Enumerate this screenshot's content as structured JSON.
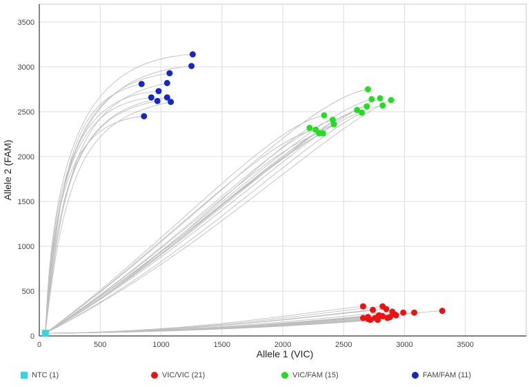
{
  "chart_data": {
    "type": "scatter",
    "xlabel": "Allele 1 (VIC)",
    "ylabel": "Allele 2 (FAM)",
    "xlim": [
      0,
      4000
    ],
    "ylim": [
      0,
      3700
    ],
    "xticks": [
      0,
      500,
      1000,
      1500,
      2000,
      2500,
      3000,
      3500
    ],
    "yticks": [
      0,
      500,
      1000,
      1500,
      2000,
      2500,
      3000,
      3500
    ],
    "grid": true,
    "trace_color": "#b3b3b3",
    "series": [
      {
        "name": "NTC (1)",
        "color": "#33d6e0",
        "marker": "square",
        "points": [
          [
            50,
            30
          ]
        ]
      },
      {
        "name": "VIC/VIC (21)",
        "color": "#ee1111",
        "marker": "circle",
        "points": [
          [
            2660,
            330
          ],
          [
            2740,
            290
          ],
          [
            2820,
            330
          ],
          [
            2850,
            300
          ],
          [
            3310,
            280
          ],
          [
            2660,
            200
          ],
          [
            2700,
            190
          ],
          [
            2720,
            180
          ],
          [
            2780,
            190
          ],
          [
            2790,
            230
          ],
          [
            2820,
            220
          ],
          [
            2880,
            210
          ],
          [
            2900,
            270
          ],
          [
            2920,
            240
          ],
          [
            2990,
            260
          ],
          [
            3080,
            260
          ],
          [
            2700,
            210
          ],
          [
            2760,
            200
          ],
          [
            2860,
            200
          ],
          [
            2930,
            230
          ],
          [
            2780,
            180
          ]
        ]
      },
      {
        "name": "VIC/FAM (15)",
        "color": "#22dd22",
        "marker": "circle",
        "points": [
          [
            2700,
            2750
          ],
          [
            2730,
            2640
          ],
          [
            2800,
            2650
          ],
          [
            2890,
            2630
          ],
          [
            2820,
            2570
          ],
          [
            2690,
            2560
          ],
          [
            2610,
            2520
          ],
          [
            2650,
            2490
          ],
          [
            2340,
            2460
          ],
          [
            2410,
            2410
          ],
          [
            2420,
            2360
          ],
          [
            2220,
            2320
          ],
          [
            2270,
            2300
          ],
          [
            2300,
            2260
          ],
          [
            2330,
            2260
          ]
        ]
      },
      {
        "name": "FAM/FAM (11)",
        "color": "#1428c8",
        "marker": "circle",
        "points": [
          [
            1260,
            3140
          ],
          [
            1250,
            3010
          ],
          [
            1070,
            2930
          ],
          [
            840,
            2810
          ],
          [
            1050,
            2820
          ],
          [
            980,
            2730
          ],
          [
            920,
            2660
          ],
          [
            1050,
            2660
          ],
          [
            970,
            2620
          ],
          [
            1080,
            2610
          ],
          [
            860,
            2450
          ]
        ]
      }
    ]
  }
}
